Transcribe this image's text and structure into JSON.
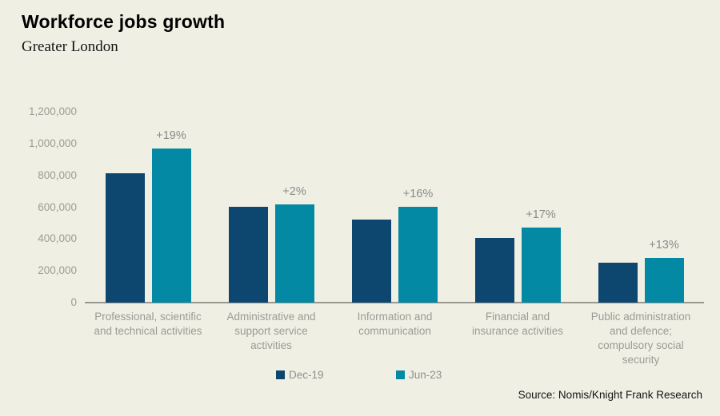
{
  "header": {
    "title": "Workforce jobs growth",
    "subtitle": "Greater London"
  },
  "chart_data": {
    "type": "bar",
    "title": "Workforce jobs growth",
    "subtitle": "Greater London",
    "categories": [
      "Professional, scientific and technical activities",
      "Administrative and support service activities",
      "Information and communication",
      "Financial and insurance activities",
      "Public administration and defence; compulsory social security"
    ],
    "category_lines": [
      [
        "Professional, scientific",
        "and technical activities"
      ],
      [
        "Administrative and",
        "support service",
        "activities"
      ],
      [
        "Information and",
        "communication"
      ],
      [
        "Financial and",
        "insurance activities"
      ],
      [
        "Public administration",
        "and defence;",
        "compulsory social",
        "security"
      ]
    ],
    "series": [
      {
        "name": "Dec-19",
        "color": "#0d466e",
        "values": [
          815000,
          605000,
          520000,
          405000,
          250000
        ]
      },
      {
        "name": "Jun-23",
        "color": "#0489a4",
        "values": [
          970000,
          618000,
          602000,
          474000,
          283000
        ]
      }
    ],
    "growth_labels": [
      "+19%",
      "+2%",
      "+16%",
      "+17%",
      "+13%"
    ],
    "ylim": [
      0,
      1200000
    ],
    "yticks": [
      0,
      200000,
      400000,
      600000,
      800000,
      1000000,
      1200000
    ],
    "ytick_labels": [
      "0",
      "200,000",
      "400,000",
      "600,000",
      "800,000",
      "1,000,000",
      "1,200,000"
    ],
    "grid": false,
    "legend_position": "bottom-center"
  },
  "legend": {
    "items": [
      {
        "label": "Dec-19",
        "color": "#0d466e"
      },
      {
        "label": "Jun-23",
        "color": "#0489a4"
      }
    ]
  },
  "source": {
    "text": "Source: Nomis/Knight Frank Research"
  },
  "colors": {
    "background": "#f0efe4",
    "axis_line": "#9a9890",
    "tick_label": "#9c9c96",
    "category_label": "#9b9b95",
    "growth_label": "#8a8a8a",
    "legend_label": "#8f8f8f",
    "series_dec19": "#0d466e",
    "series_jun23": "#0489a4"
  }
}
